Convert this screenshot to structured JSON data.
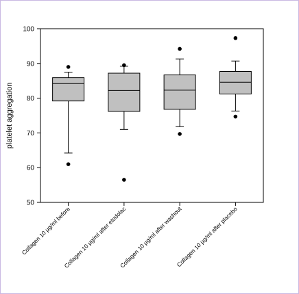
{
  "colors": {
    "frame_border": "#c9b8e2",
    "box_fill": "#c0c0c0",
    "stroke": "#000000"
  },
  "chart_data": {
    "type": "box",
    "title": "",
    "ylabel": "platelet aggregation",
    "xlabel": "",
    "ylim": [
      50,
      100
    ],
    "yticks": [
      50,
      60,
      70,
      80,
      90,
      100
    ],
    "grid": false,
    "categories": [
      "Collagen 10 µg/ml before",
      "Collagen 10 µg/ml  after etodolac",
      "Collagen 10 µg/ml after washout",
      "Collagen 10 µg/ml after placebo"
    ],
    "boxes": [
      {
        "whisker_low": 64.2,
        "q1": 79.2,
        "median": 84.2,
        "q3": 85.9,
        "whisker_high": 87.5,
        "outliers": [
          89.0,
          61.0
        ]
      },
      {
        "whisker_low": 71.0,
        "q1": 76.2,
        "median": 82.2,
        "q3": 87.2,
        "whisker_high": 89.2,
        "outliers": [
          89.5,
          56.5
        ]
      },
      {
        "whisker_low": 71.8,
        "q1": 76.8,
        "median": 82.3,
        "q3": 86.7,
        "whisker_high": 91.3,
        "outliers": [
          94.2,
          69.7
        ]
      },
      {
        "whisker_low": 76.3,
        "q1": 81.2,
        "median": 84.6,
        "q3": 87.7,
        "whisker_high": 90.7,
        "outliers": [
          97.3,
          74.7
        ]
      }
    ]
  }
}
